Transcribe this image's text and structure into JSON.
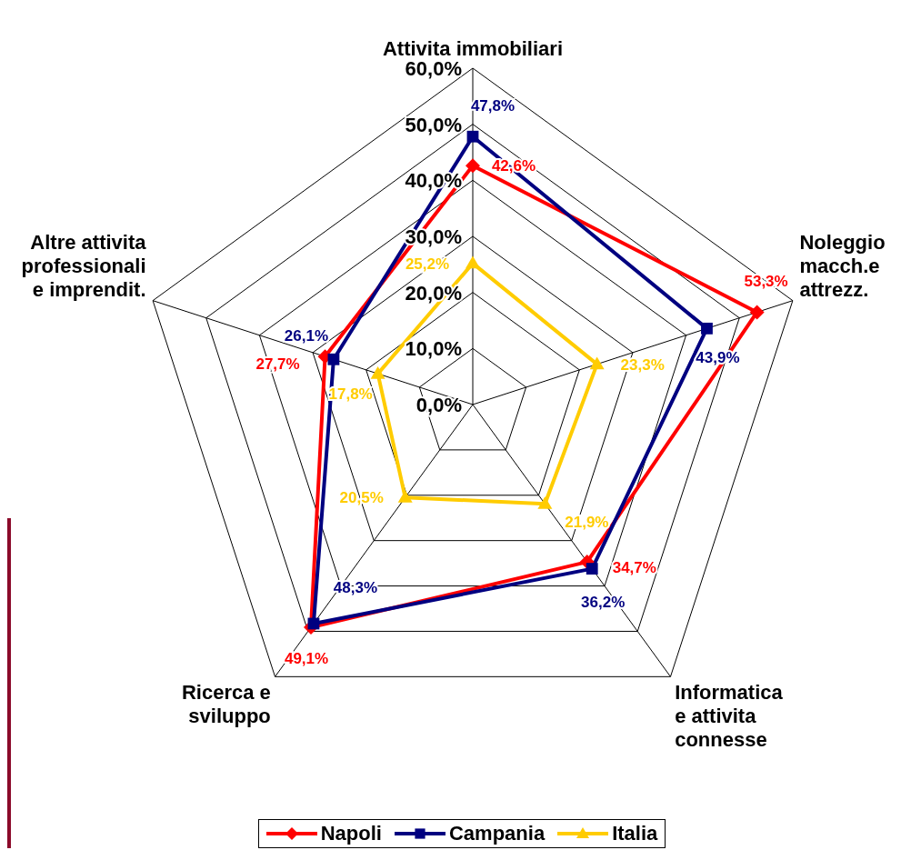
{
  "chart_data": {
    "type": "radar",
    "categories": [
      "Attivita immobiliari",
      "Noleggio\nmacch.e\nattrezz.",
      "Informatica\ne attivita\nconnesse",
      "Ricerca e\nsviluppo",
      "Altre attivita\nprofessionali\ne imprendit."
    ],
    "series": [
      {
        "name": "Napoli",
        "color": "#ff0000",
        "marker": "diamond",
        "values": [
          42.6,
          53.3,
          34.7,
          49.1,
          27.7
        ],
        "value_labels": [
          "42,6%",
          "53,3%",
          "34,7%",
          "49,1%",
          "27,7%"
        ]
      },
      {
        "name": "Campania",
        "color": "#000080",
        "marker": "square",
        "values": [
          47.8,
          43.9,
          36.2,
          48.3,
          26.1
        ],
        "value_labels": [
          "47,8%",
          "43,9%",
          "36,2%",
          "48,3%",
          "26,1%"
        ]
      },
      {
        "name": "Italia",
        "color": "#ffcc00",
        "marker": "triangle",
        "values": [
          25.2,
          23.3,
          21.9,
          20.5,
          17.8
        ],
        "value_labels": [
          "25,2%",
          "23,3%",
          "21,9%",
          "20,5%",
          "17,8%"
        ]
      }
    ],
    "ylim": [
      0,
      60
    ],
    "yticks": [
      {
        "value": 0,
        "label": "0,0%"
      },
      {
        "value": 10,
        "label": "10,0%"
      },
      {
        "value": 20,
        "label": "20,0%"
      },
      {
        "value": 30,
        "label": "30,0%"
      },
      {
        "value": 40,
        "label": "40,0%"
      },
      {
        "value": 50,
        "label": "50,0%"
      },
      {
        "value": 60,
        "label": "60,0%"
      }
    ],
    "grid": true,
    "legend": "bottom"
  }
}
